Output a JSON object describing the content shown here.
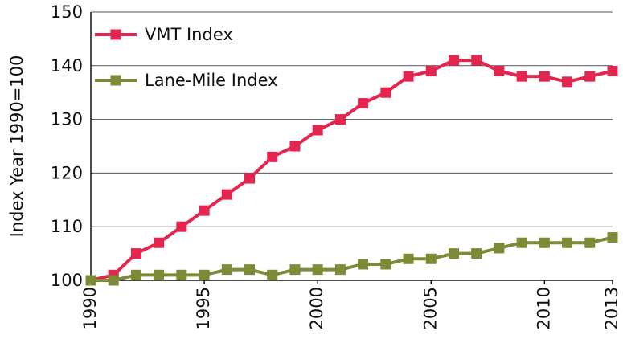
{
  "chart_data": {
    "type": "line",
    "y_label": "Index Year 1990=100",
    "x": [
      1990,
      1991,
      1992,
      1993,
      1994,
      1995,
      1996,
      1997,
      1998,
      1999,
      2000,
      2001,
      2002,
      2003,
      2004,
      2005,
      2006,
      2007,
      2008,
      2009,
      2010,
      2011,
      2012,
      2013
    ],
    "series": [
      {
        "name": "VMT Index",
        "color": "#e2264f",
        "values": [
          100,
          101,
          105,
          107,
          110,
          113,
          116,
          119,
          123,
          125,
          128,
          130,
          133,
          135,
          138,
          139,
          141,
          141,
          139,
          138,
          138,
          137,
          138,
          139
        ]
      },
      {
        "name": "Lane-Mile Index",
        "color": "#7b8b38",
        "values": [
          100,
          100,
          101,
          101,
          101,
          101,
          102,
          102,
          101,
          102,
          102,
          102,
          103,
          103,
          104,
          104,
          105,
          105,
          106,
          107,
          107,
          107,
          107,
          108
        ]
      }
    ],
    "xlim": [
      1990,
      2013
    ],
    "xticks": [
      1990,
      1995,
      2000,
      2005,
      2010,
      2013
    ],
    "ylim": [
      100,
      150
    ],
    "yticks": [
      100,
      110,
      120,
      130,
      140,
      150
    ],
    "grid": true,
    "legend": "upper left"
  }
}
